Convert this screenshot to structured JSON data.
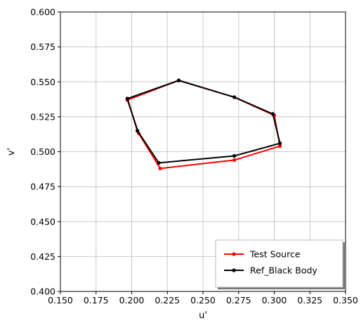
{
  "chart_data": {
    "type": "line",
    "xlabel": "u'",
    "ylabel": "v'",
    "xlim": [
      0.15,
      0.35
    ],
    "ylim": [
      0.4,
      0.6
    ],
    "x_ticks": [
      "0.150",
      "0.175",
      "0.200",
      "0.225",
      "0.250",
      "0.275",
      "0.300",
      "0.325",
      "0.350"
    ],
    "y_ticks": [
      "0.400",
      "0.425",
      "0.450",
      "0.475",
      "0.500",
      "0.525",
      "0.550",
      "0.575",
      "0.600"
    ],
    "grid": true,
    "legend_position": "bottom-right",
    "series": [
      {
        "name": "Test Source",
        "color": "#ff0000",
        "points": [
          {
            "x": 0.197,
            "y": 0.537
          },
          {
            "x": 0.233,
            "y": 0.551
          },
          {
            "x": 0.272,
            "y": 0.539
          },
          {
            "x": 0.3,
            "y": 0.526
          },
          {
            "x": 0.304,
            "y": 0.504
          },
          {
            "x": 0.272,
            "y": 0.494
          },
          {
            "x": 0.22,
            "y": 0.488
          },
          {
            "x": 0.205,
            "y": 0.513
          },
          {
            "x": 0.197,
            "y": 0.537
          }
        ]
      },
      {
        "name": "Ref_Black Body",
        "color": "#000000",
        "points": [
          {
            "x": 0.197,
            "y": 0.538
          },
          {
            "x": 0.233,
            "y": 0.551
          },
          {
            "x": 0.272,
            "y": 0.539
          },
          {
            "x": 0.299,
            "y": 0.527
          },
          {
            "x": 0.304,
            "y": 0.506
          },
          {
            "x": 0.272,
            "y": 0.497
          },
          {
            "x": 0.219,
            "y": 0.492
          },
          {
            "x": 0.204,
            "y": 0.515
          },
          {
            "x": 0.197,
            "y": 0.538
          }
        ]
      }
    ]
  }
}
